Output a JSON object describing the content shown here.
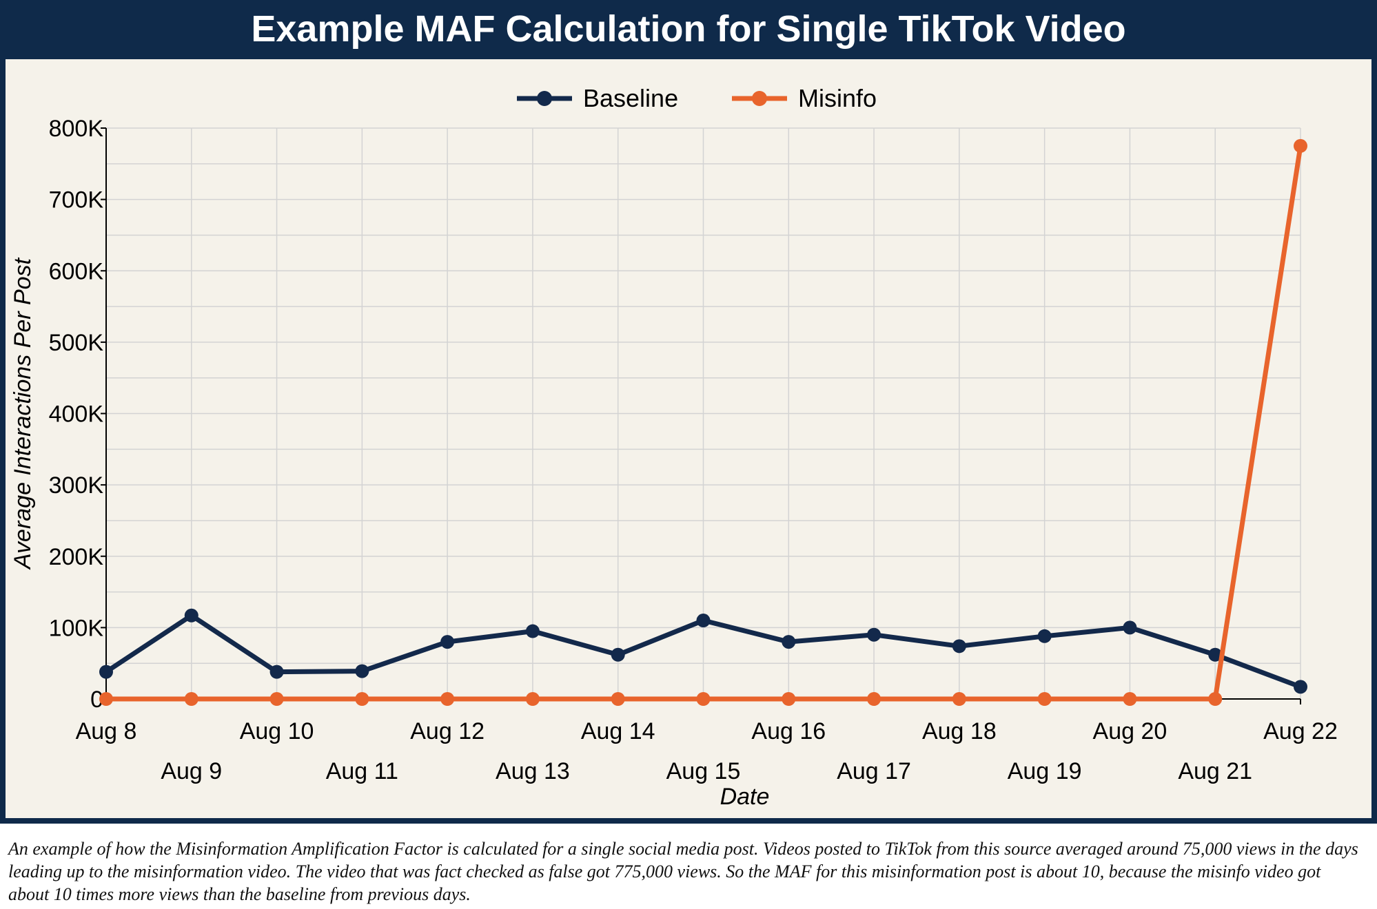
{
  "title": "Example MAF Calculation for Single TikTok Video",
  "caption": "An example of how the Misinformation Amplification Factor is calculated for a single social media post. Videos posted to TikTok from this source averaged around 75,000 views in the days leading up to the misinformation video. The video that was fact checked as false got 775,000 views. So the MAF for this misinformation post is about 10, because the misinfo video got about 10 times more views than the baseline from previous days.",
  "chart_data": {
    "type": "line",
    "title": "Example MAF Calculation for Single TikTok Video",
    "xlabel": "Date",
    "ylabel": "Average Interactions Per Post",
    "categories": [
      "Aug 8",
      "Aug 9",
      "Aug 10",
      "Aug 11",
      "Aug 12",
      "Aug 13",
      "Aug 14",
      "Aug 15",
      "Aug 16",
      "Aug 17",
      "Aug 18",
      "Aug 19",
      "Aug 20",
      "Aug 21",
      "Aug 22"
    ],
    "ylim": [
      0,
      800000
    ],
    "yticks": [
      0,
      100000,
      200000,
      300000,
      400000,
      500000,
      600000,
      700000,
      800000
    ],
    "ytick_labels": [
      "0",
      "100K",
      "200K",
      "300K",
      "400K",
      "500K",
      "600K",
      "700K",
      "800K"
    ],
    "grid": true,
    "legend": "top-center",
    "series": [
      {
        "name": "Baseline",
        "color": "#13294b",
        "values": [
          38000,
          117000,
          38000,
          39000,
          80000,
          95000,
          62000,
          110000,
          80000,
          90000,
          74000,
          88000,
          100000,
          62000,
          17000
        ]
      },
      {
        "name": "Misinfo",
        "color": "#e8642c",
        "values": [
          0,
          0,
          0,
          0,
          0,
          0,
          0,
          0,
          0,
          0,
          0,
          0,
          0,
          0,
          775000
        ]
      }
    ]
  }
}
